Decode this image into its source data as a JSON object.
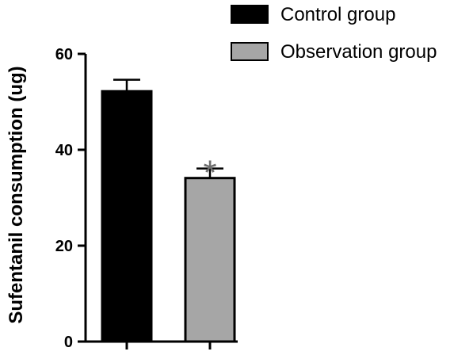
{
  "chart_data": {
    "type": "bar",
    "categories": [
      "Control group",
      "Observation group"
    ],
    "values": [
      52.2,
      34.1
    ],
    "errors": [
      2.4,
      2.0
    ],
    "colors": [
      "#000000",
      "#a6a6a6"
    ],
    "ylabel": "Sufentanil consumption (ug)",
    "ylim": [
      0,
      60
    ],
    "yticks": [
      "0",
      "20",
      "40",
      "60"
    ],
    "significance": [
      "",
      "*"
    ],
    "legend": {
      "position": "top-right",
      "entries": [
        "Control group",
        "Observation group"
      ]
    },
    "grid": false
  }
}
